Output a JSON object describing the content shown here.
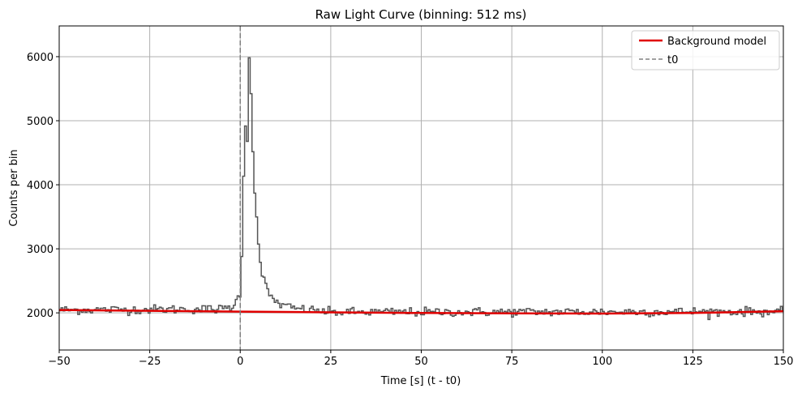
{
  "chart_data": {
    "type": "line",
    "title": "Raw Light Curve (binning: 512 ms)",
    "xlabel": "Time [s] (t - t0)",
    "ylabel": "Counts per bin",
    "xlim": [
      -50,
      150
    ],
    "ylim": [
      1420,
      6480
    ],
    "x_ticks": [
      -50,
      -25,
      0,
      25,
      50,
      75,
      100,
      125,
      150
    ],
    "x_tick_labels": [
      "−50",
      "−25",
      "0",
      "25",
      "50",
      "75",
      "100",
      "125",
      "150"
    ],
    "y_ticks": [
      2000,
      3000,
      4000,
      5000,
      6000
    ],
    "y_tick_labels": [
      "2000",
      "3000",
      "4000",
      "5000",
      "6000"
    ],
    "grid": true,
    "legend_position": "top-right",
    "legend": [
      "Background model",
      "t0"
    ],
    "colors": {
      "counts": "#555555",
      "background": "#e00000",
      "t0": "#808080",
      "grid": "#b0b0b0"
    },
    "bin_width_s": 0.512,
    "background_model": {
      "name": "Background model",
      "x": [
        -50,
        0,
        25,
        50,
        75,
        100,
        125,
        150
      ],
      "y": [
        2045,
        2020,
        2008,
        1998,
        1992,
        1990,
        1998,
        2025
      ]
    },
    "t0": {
      "name": "t0",
      "x": 0
    },
    "counts_anchors": {
      "x": [
        -50,
        -5,
        -2,
        -1,
        0,
        0.5,
        1,
        1.5,
        2,
        2.5,
        3,
        3.5,
        4,
        4.5,
        5,
        5.5,
        6,
        7,
        8,
        9,
        10,
        12,
        15,
        20,
        25,
        150
      ],
      "y": [
        2045,
        2060,
        2100,
        2180,
        2330,
        3000,
        4300,
        5000,
        4700,
        6050,
        5400,
        4550,
        3880,
        3600,
        3050,
        2800,
        2620,
        2420,
        2300,
        2220,
        2170,
        2110,
        2070,
        2040,
        2010,
        2020
      ]
    },
    "counts_noise_amplitude": 35
  }
}
